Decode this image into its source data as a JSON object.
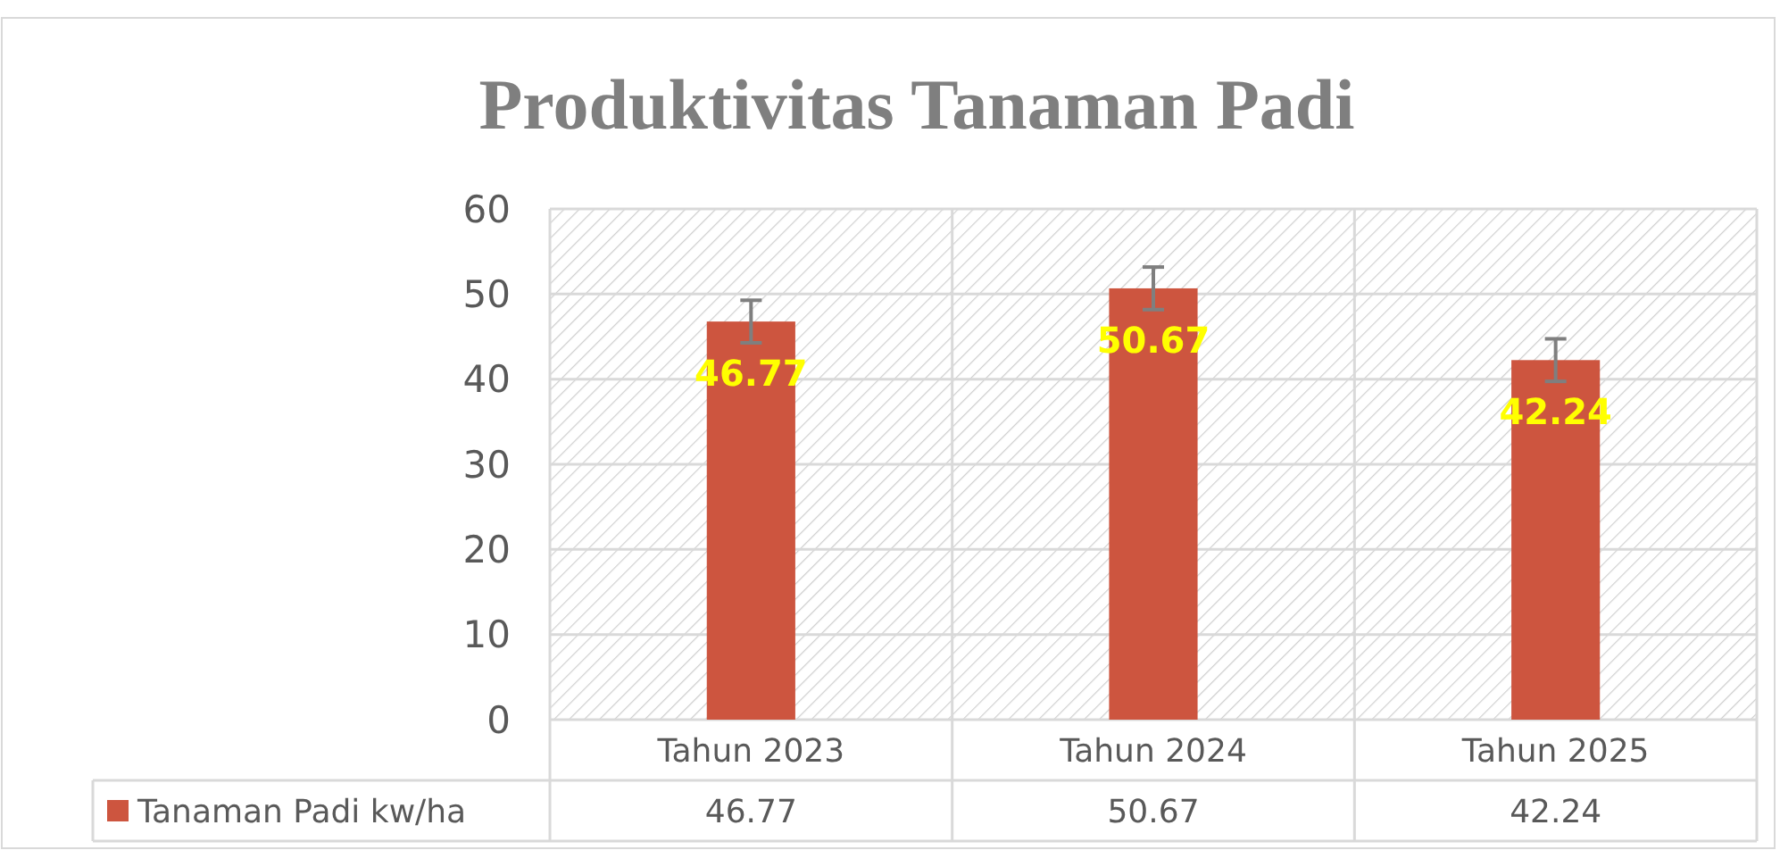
{
  "chart_data": {
    "type": "bar",
    "title": "Produktivitas Tanaman Padi",
    "categories": [
      "Tahun 2023",
      "Tahun 2024",
      "Tahun 2025"
    ],
    "series": [
      {
        "name": "Tanaman Padi kw/ha",
        "color": "#cd553f",
        "values": [
          46.77,
          50.67,
          42.24
        ],
        "value_labels": [
          "46.77",
          "50.67",
          "42.24"
        ],
        "errors": [
          2.5,
          2.5,
          2.5
        ]
      }
    ],
    "ylim": [
      0,
      60
    ],
    "yticks": [
      0,
      10,
      20,
      30,
      40,
      50,
      60
    ],
    "grid": true,
    "legend": "bottom",
    "annotations": [
      "46.77",
      "50.67",
      "42.24"
    ]
  }
}
